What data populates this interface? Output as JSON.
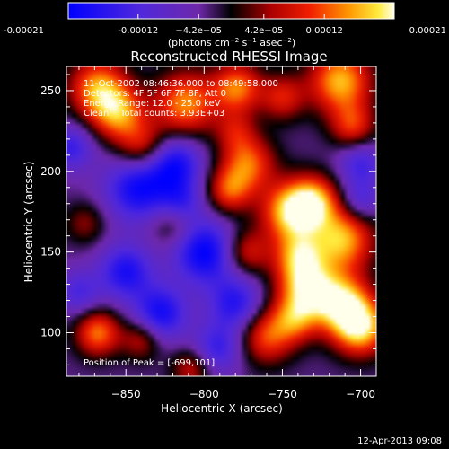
{
  "chart_data": {
    "type": "heatmap",
    "title": "Reconstructed RHESSI Image",
    "xlabel": "Heliocentric X (arcsec)",
    "ylabel": "Heliocentric Y (arcsec)",
    "xlim": [
      -888,
      -690
    ],
    "ylim": [
      73,
      265
    ],
    "x_ticks": [
      -850,
      -800,
      -750,
      -700
    ],
    "y_ticks": [
      100,
      150,
      200,
      250
    ],
    "colorbar": {
      "range": [
        -0.00021,
        0.00021
      ],
      "ticks": [
        -0.00021,
        -0.00012,
        -4.2e-05,
        4.2e-05,
        0.00012,
        0.00021
      ],
      "tick_labels": [
        "-0.00021",
        "-0.00012",
        "−4.2e−05",
        "4.2e−05",
        "0.00012",
        "0.00021"
      ],
      "unit_text": "(photons cm",
      "unit_exp1": "−2",
      "unit_mid": " s",
      "unit_exp2": "−1",
      "unit_end": " asec",
      "unit_exp3": "−2",
      "unit_close": ")"
    },
    "annotations": [
      "11-Oct-2002 08:46:36.000 to 08:49:58.000",
      "Detectors: 4F 5F 6F 7F 8F, Att 0",
      "Energy Range: 12.0 - 25.0 keV",
      "Clean    Total counts: 3.93E+03",
      "Position of Peak = [-699,101]"
    ],
    "peak": [
      -699,
      101
    ],
    "blobs": [
      {
        "x": -868,
        "y": 252,
        "a": 0.85,
        "s": 13
      },
      {
        "x": -855,
        "y": 236,
        "a": 0.8,
        "s": 12
      },
      {
        "x": -812,
        "y": 242,
        "a": 0.85,
        "s": 14
      },
      {
        "x": -779,
        "y": 252,
        "a": 0.8,
        "s": 11
      },
      {
        "x": -750,
        "y": 246,
        "a": 0.55,
        "s": 10
      },
      {
        "x": -713,
        "y": 256,
        "a": 0.95,
        "s": 14
      },
      {
        "x": -705,
        "y": 228,
        "a": 0.6,
        "s": 10
      },
      {
        "x": -840,
        "y": 215,
        "a": 0.6,
        "s": 11
      },
      {
        "x": -772,
        "y": 205,
        "a": 0.75,
        "s": 12
      },
      {
        "x": -784,
        "y": 188,
        "a": 0.65,
        "s": 10
      },
      {
        "x": -745,
        "y": 175,
        "a": 1.0,
        "s": 13
      },
      {
        "x": -730,
        "y": 182,
        "a": 0.8,
        "s": 11
      },
      {
        "x": -712,
        "y": 158,
        "a": 0.95,
        "s": 14
      },
      {
        "x": -740,
        "y": 148,
        "a": 0.7,
        "s": 11
      },
      {
        "x": -735,
        "y": 128,
        "a": 0.95,
        "s": 13
      },
      {
        "x": -712,
        "y": 118,
        "a": 1.0,
        "s": 13
      },
      {
        "x": -700,
        "y": 103,
        "a": 1.0,
        "s": 12
      },
      {
        "x": -760,
        "y": 98,
        "a": 0.7,
        "s": 12
      },
      {
        "x": -742,
        "y": 108,
        "a": 0.6,
        "s": 10
      },
      {
        "x": -773,
        "y": 150,
        "a": 0.55,
        "s": 10
      },
      {
        "x": -820,
        "y": 168,
        "a": 0.4,
        "s": 10
      },
      {
        "x": -876,
        "y": 168,
        "a": 0.35,
        "s": 9
      },
      {
        "x": -868,
        "y": 100,
        "a": 0.8,
        "s": 10
      },
      {
        "x": -840,
        "y": 96,
        "a": 0.5,
        "s": 9
      },
      {
        "x": -808,
        "y": 78,
        "a": 0.5,
        "s": 9
      },
      {
        "x": -780,
        "y": 225,
        "a": 0.4,
        "s": 9
      },
      {
        "x": -842,
        "y": 190,
        "a": -0.8,
        "s": 15
      },
      {
        "x": -818,
        "y": 205,
        "a": -0.7,
        "s": 12
      },
      {
        "x": -800,
        "y": 150,
        "a": -0.85,
        "s": 14
      },
      {
        "x": -780,
        "y": 118,
        "a": -0.65,
        "s": 12
      },
      {
        "x": -850,
        "y": 138,
        "a": -0.7,
        "s": 12
      },
      {
        "x": -828,
        "y": 112,
        "a": -0.75,
        "s": 12
      },
      {
        "x": -885,
        "y": 215,
        "a": -0.55,
        "s": 10
      },
      {
        "x": -700,
        "y": 205,
        "a": -0.5,
        "s": 10
      },
      {
        "x": -700,
        "y": 182,
        "a": -0.45,
        "s": 9
      },
      {
        "x": -815,
        "y": 180,
        "a": -0.5,
        "s": 10
      },
      {
        "x": -792,
        "y": 90,
        "a": -0.55,
        "s": 11
      },
      {
        "x": -880,
        "y": 125,
        "a": -0.45,
        "s": 10
      }
    ]
  },
  "footer": {
    "timestamp": "12-Apr-2013 09:08"
  }
}
